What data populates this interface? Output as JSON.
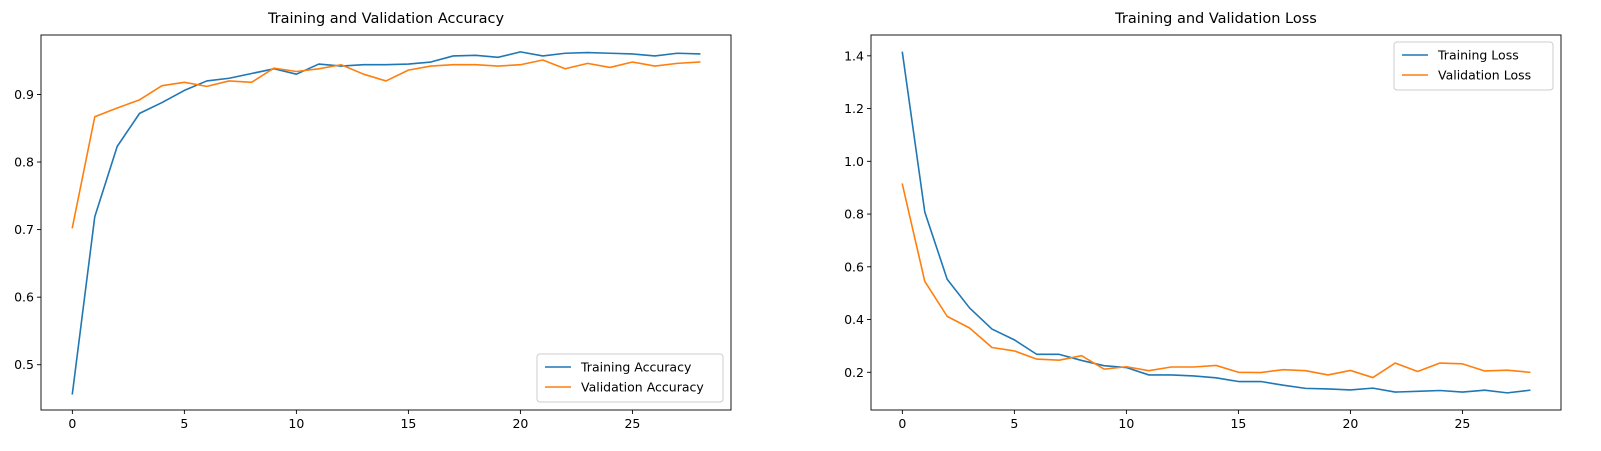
{
  "chart_data": [
    {
      "type": "line",
      "title": "Training and Validation Accuracy",
      "xlabel": "",
      "ylabel": "",
      "xlim": [
        -1.4,
        29.4
      ],
      "ylim": [
        0.433,
        0.988
      ],
      "xticks": [
        0,
        5,
        10,
        15,
        20,
        25
      ],
      "yticks": [
        0.5,
        0.6,
        0.7,
        0.8,
        0.9
      ],
      "x": [
        0,
        1,
        2,
        3,
        4,
        5,
        6,
        7,
        8,
        9,
        10,
        11,
        12,
        13,
        14,
        15,
        16,
        17,
        18,
        19,
        20,
        21,
        22,
        23,
        24,
        25,
        26,
        27,
        28
      ],
      "grid": false,
      "legend_position": "lower right",
      "series": [
        {
          "name": "Training Accuracy",
          "color": "#1f77b4",
          "values": [
            0.457,
            0.719,
            0.823,
            0.872,
            0.888,
            0.906,
            0.92,
            0.924,
            0.931,
            0.938,
            0.93,
            0.945,
            0.942,
            0.944,
            0.944,
            0.945,
            0.948,
            0.957,
            0.958,
            0.955,
            0.963,
            0.957,
            0.961,
            0.962,
            0.961,
            0.96,
            0.957,
            0.961,
            0.96
          ]
        },
        {
          "name": "Validation Accuracy",
          "color": "#ff7f0e",
          "values": [
            0.703,
            0.867,
            0.88,
            0.892,
            0.913,
            0.918,
            0.912,
            0.92,
            0.918,
            0.939,
            0.934,
            0.938,
            0.944,
            0.93,
            0.92,
            0.936,
            0.942,
            0.944,
            0.944,
            0.942,
            0.944,
            0.951,
            0.938,
            0.946,
            0.94,
            0.948,
            0.942,
            0.946,
            0.948
          ]
        }
      ]
    },
    {
      "type": "line",
      "title": "Training and Validation Loss",
      "xlabel": "",
      "ylabel": "",
      "xlim": [
        -1.4,
        29.4
      ],
      "ylim": [
        0.057,
        1.479
      ],
      "xticks": [
        0,
        5,
        10,
        15,
        20,
        25
      ],
      "yticks": [
        0.2,
        0.4,
        0.6,
        0.8,
        1.0,
        1.2,
        1.4
      ],
      "x": [
        0,
        1,
        2,
        3,
        4,
        5,
        6,
        7,
        8,
        9,
        10,
        11,
        12,
        13,
        14,
        15,
        16,
        17,
        18,
        19,
        20,
        21,
        22,
        23,
        24,
        25,
        26,
        27,
        28
      ],
      "grid": false,
      "legend_position": "upper right",
      "series": [
        {
          "name": "Training Loss",
          "color": "#1f77b4",
          "values": [
            1.413,
            0.808,
            0.553,
            0.444,
            0.364,
            0.323,
            0.268,
            0.268,
            0.245,
            0.225,
            0.218,
            0.19,
            0.19,
            0.186,
            0.179,
            0.165,
            0.165,
            0.151,
            0.139,
            0.137,
            0.133,
            0.14,
            0.125,
            0.128,
            0.131,
            0.125,
            0.132,
            0.122,
            0.132
          ]
        },
        {
          "name": "Validation Loss",
          "color": "#ff7f0e",
          "values": [
            0.913,
            0.545,
            0.412,
            0.368,
            0.294,
            0.281,
            0.25,
            0.246,
            0.263,
            0.212,
            0.221,
            0.206,
            0.22,
            0.22,
            0.226,
            0.2,
            0.199,
            0.21,
            0.206,
            0.19,
            0.207,
            0.18,
            0.235,
            0.203,
            0.235,
            0.232,
            0.205,
            0.208,
            0.2
          ]
        }
      ]
    }
  ]
}
